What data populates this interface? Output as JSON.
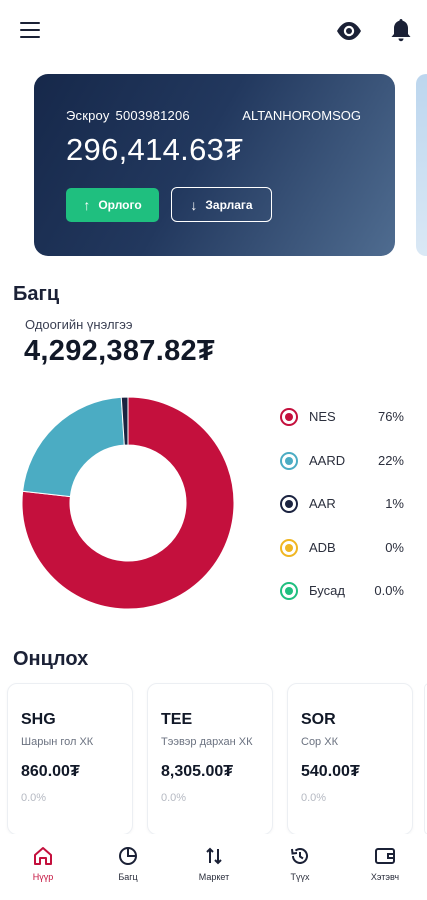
{
  "header": {
    "menu_icon": "hamburger-menu-icon",
    "visibility_icon": "eye-icon",
    "notification_icon": "bell-icon"
  },
  "account_card": {
    "label": "Эскроу",
    "number": "5003981206",
    "holder": "ALTANHOROMSOG",
    "balance": "296,414.63₮",
    "deposit_label": "Орлого",
    "withdraw_label": "Зарлага"
  },
  "portfolio": {
    "title": "Багц",
    "current_value_label": "Одоогийн үнэлгээ",
    "current_value": "4,292,387.82₮"
  },
  "chart_data": {
    "type": "pie",
    "style": "donut",
    "categories": [
      "NES",
      "AARD",
      "AAR",
      "ADB",
      "Бусад"
    ],
    "values": [
      76,
      22,
      1,
      0,
      0.0
    ],
    "labels": [
      "76%",
      "22%",
      "1%",
      "0%",
      "0.0%"
    ],
    "colors": [
      "#c4103d",
      "#4bacc3",
      "#1b2340",
      "#f0b622",
      "#1fbf7f"
    ],
    "legend": "right"
  },
  "featured": {
    "title": "Онцлох",
    "stocks": [
      {
        "code": "SHG",
        "company": "Шарын гол ХК",
        "price": "860.00₮",
        "change": "0.0%"
      },
      {
        "code": "TEE",
        "company": "Тээвэр дархан ХК",
        "price": "8,305.00₮",
        "change": "0.0%"
      },
      {
        "code": "SOR",
        "company": "Сор ХК",
        "price": "540.00₮",
        "change": "0.0%"
      }
    ]
  },
  "nav": {
    "active_color": "#c4103d",
    "items": [
      {
        "label": "Нүүр",
        "icon": "home-icon"
      },
      {
        "label": "Багц",
        "icon": "pie-chart-icon"
      },
      {
        "label": "Маркет",
        "icon": "swap-arrows-icon"
      },
      {
        "label": "Түүх",
        "icon": "history-icon"
      },
      {
        "label": "Хэтэвч",
        "icon": "wallet-icon"
      }
    ]
  }
}
